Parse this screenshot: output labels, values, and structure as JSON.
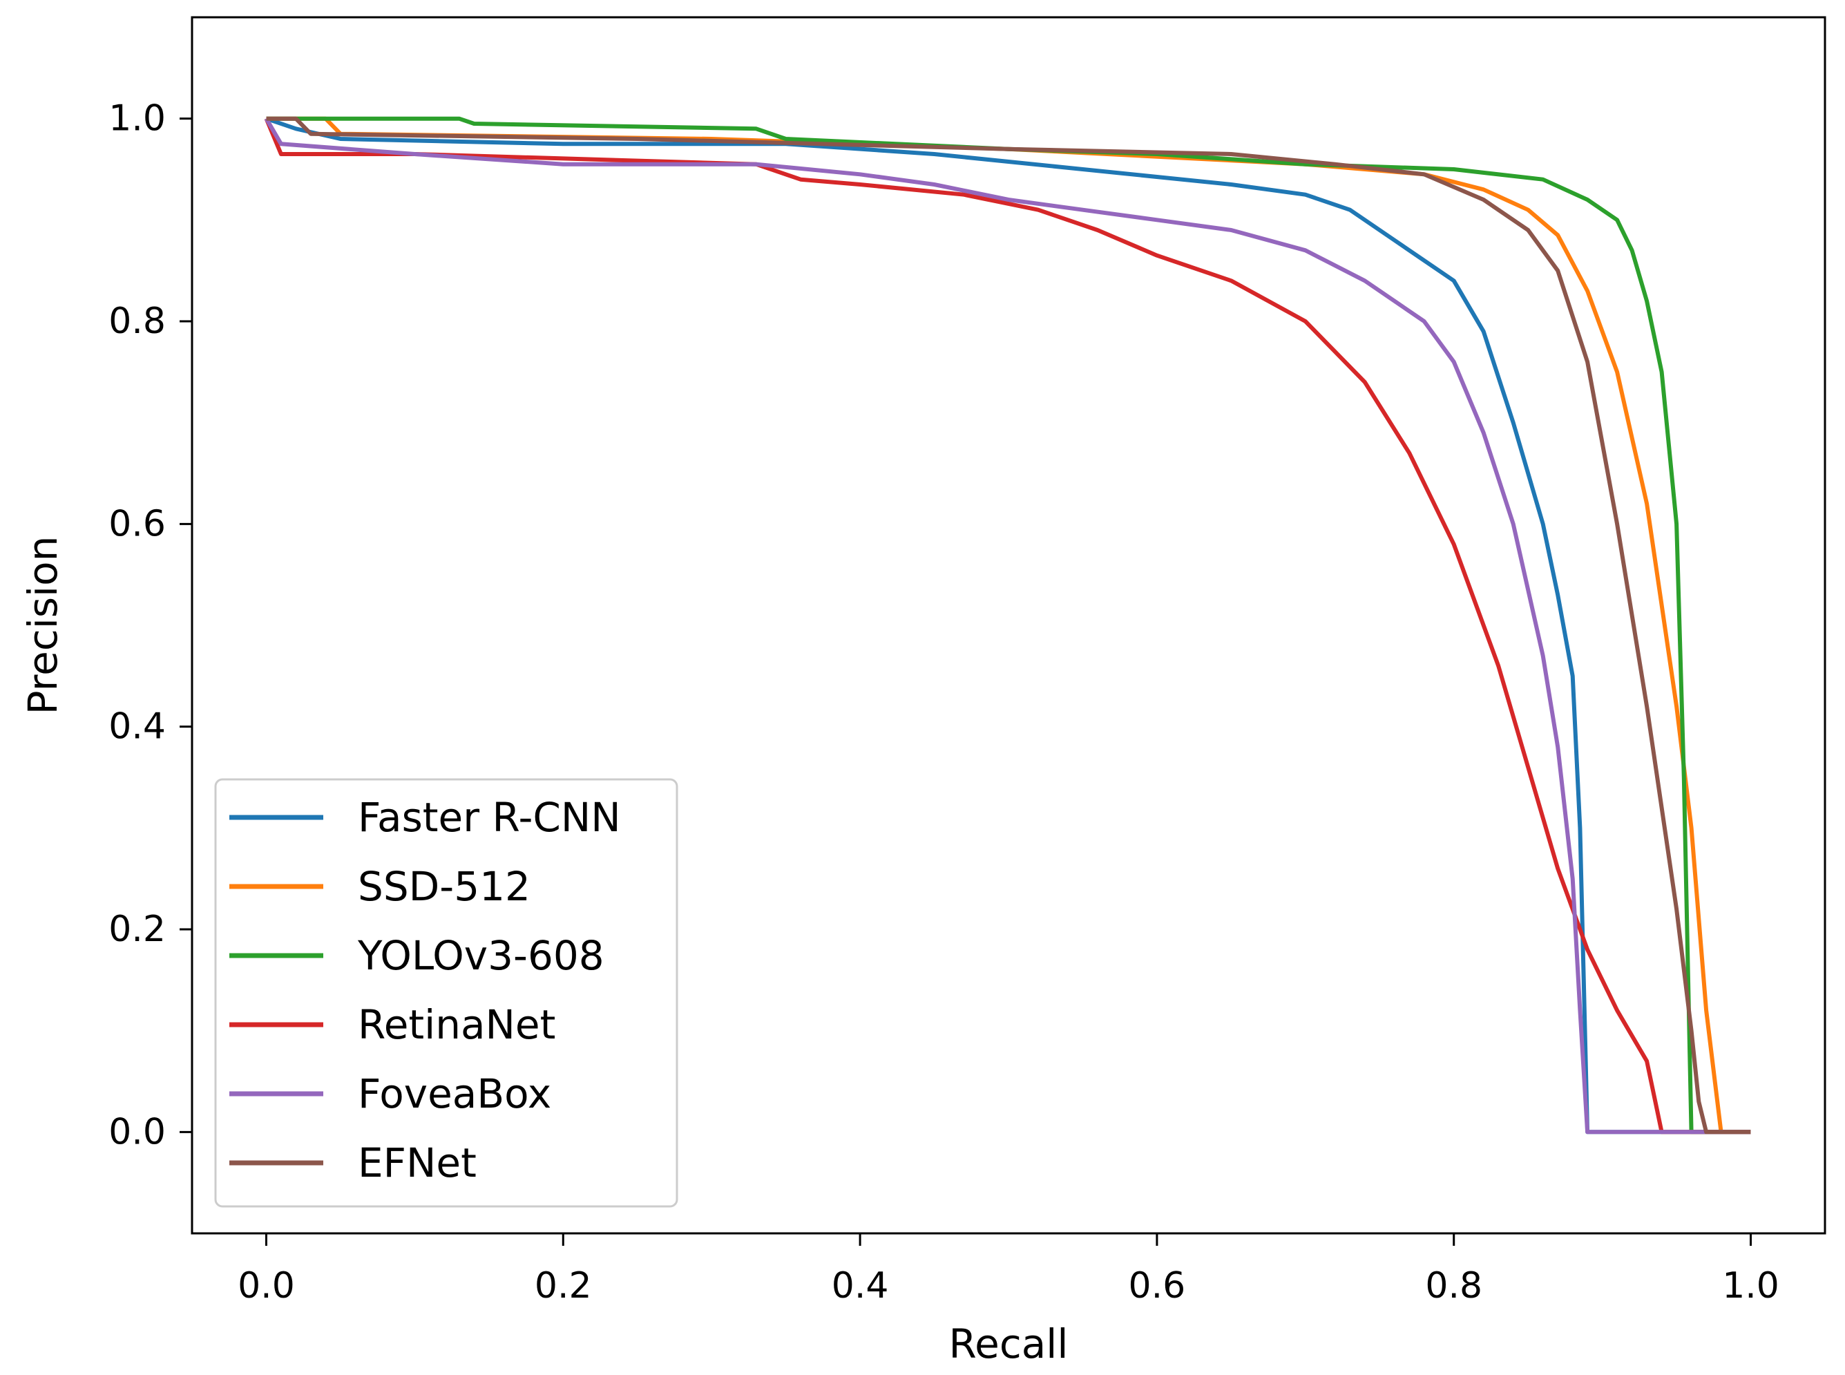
{
  "chart_data": {
    "type": "line",
    "title": "",
    "xlabel": "Recall",
    "ylabel": "Precision",
    "xlim": [
      -0.05,
      1.05
    ],
    "ylim": [
      -0.1,
      1.1
    ],
    "xticks": [
      0.0,
      0.2,
      0.4,
      0.6,
      0.8,
      1.0
    ],
    "xtick_labels": [
      "0.0",
      "0.2",
      "0.4",
      "0.6",
      "0.8",
      "1.0"
    ],
    "yticks": [
      0.0,
      0.2,
      0.4,
      0.6,
      0.8,
      1.0
    ],
    "ytick_labels": [
      "0.0",
      "0.2",
      "0.4",
      "0.6",
      "0.8",
      "1.0"
    ],
    "grid": false,
    "legend_position": "lower-left",
    "series": [
      {
        "name": "Faster R-CNN",
        "color": "#1f77b4",
        "x": [
          0.0,
          0.02,
          0.05,
          0.2,
          0.35,
          0.45,
          0.55,
          0.65,
          0.7,
          0.73,
          0.76,
          0.78,
          0.8,
          0.82,
          0.84,
          0.86,
          0.87,
          0.88,
          0.885,
          0.89,
          0.9,
          1.0
        ],
        "y": [
          1.0,
          0.99,
          0.98,
          0.975,
          0.975,
          0.965,
          0.95,
          0.935,
          0.925,
          0.91,
          0.88,
          0.86,
          0.84,
          0.79,
          0.7,
          0.6,
          0.53,
          0.45,
          0.3,
          0.0,
          0.0,
          0.0
        ]
      },
      {
        "name": "SSD-512",
        "color": "#ff7f0e",
        "x": [
          0.0,
          0.04,
          0.05,
          0.3,
          0.5,
          0.7,
          0.78,
          0.82,
          0.85,
          0.87,
          0.89,
          0.91,
          0.93,
          0.95,
          0.96,
          0.97,
          0.98,
          1.0
        ],
        "y": [
          1.0,
          1.0,
          0.985,
          0.98,
          0.97,
          0.955,
          0.945,
          0.93,
          0.91,
          0.885,
          0.83,
          0.75,
          0.62,
          0.42,
          0.3,
          0.12,
          0.0,
          0.0
        ]
      },
      {
        "name": "YOLOv3-608",
        "color": "#2ca02c",
        "x": [
          0.0,
          0.13,
          0.14,
          0.33,
          0.35,
          0.5,
          0.6,
          0.7,
          0.8,
          0.86,
          0.89,
          0.91,
          0.92,
          0.93,
          0.94,
          0.95,
          0.955,
          0.96,
          1.0
        ],
        "y": [
          1.0,
          1.0,
          0.995,
          0.99,
          0.98,
          0.97,
          0.965,
          0.955,
          0.95,
          0.94,
          0.92,
          0.9,
          0.87,
          0.82,
          0.75,
          0.6,
          0.35,
          0.0,
          0.0
        ]
      },
      {
        "name": "RetinaNet",
        "color": "#d62728",
        "x": [
          0.0,
          0.01,
          0.1,
          0.33,
          0.36,
          0.4,
          0.47,
          0.52,
          0.56,
          0.6,
          0.65,
          0.7,
          0.74,
          0.77,
          0.8,
          0.83,
          0.85,
          0.87,
          0.89,
          0.91,
          0.93,
          0.94,
          0.95,
          1.0
        ],
        "y": [
          1.0,
          0.965,
          0.965,
          0.955,
          0.94,
          0.935,
          0.925,
          0.91,
          0.89,
          0.865,
          0.84,
          0.8,
          0.74,
          0.67,
          0.58,
          0.46,
          0.36,
          0.26,
          0.18,
          0.12,
          0.07,
          0.0,
          0.0,
          0.0
        ]
      },
      {
        "name": "FoveaBox",
        "color": "#9467bd",
        "x": [
          0.0,
          0.01,
          0.1,
          0.2,
          0.33,
          0.4,
          0.45,
          0.5,
          0.55,
          0.6,
          0.65,
          0.7,
          0.74,
          0.78,
          0.8,
          0.82,
          0.84,
          0.86,
          0.87,
          0.88,
          0.885,
          0.89,
          0.9,
          1.0
        ],
        "y": [
          1.0,
          0.975,
          0.965,
          0.955,
          0.955,
          0.945,
          0.935,
          0.92,
          0.91,
          0.9,
          0.89,
          0.87,
          0.84,
          0.8,
          0.76,
          0.69,
          0.6,
          0.47,
          0.38,
          0.25,
          0.12,
          0.0,
          0.0,
          0.0
        ]
      },
      {
        "name": "EFNet",
        "color": "#8c564b",
        "x": [
          0.0,
          0.02,
          0.03,
          0.25,
          0.5,
          0.65,
          0.72,
          0.78,
          0.82,
          0.85,
          0.87,
          0.89,
          0.91,
          0.93,
          0.95,
          0.96,
          0.965,
          0.97,
          1.0
        ],
        "y": [
          1.0,
          1.0,
          0.985,
          0.98,
          0.97,
          0.965,
          0.955,
          0.945,
          0.92,
          0.89,
          0.85,
          0.76,
          0.6,
          0.42,
          0.22,
          0.1,
          0.03,
          0.0,
          0.0
        ]
      }
    ]
  }
}
